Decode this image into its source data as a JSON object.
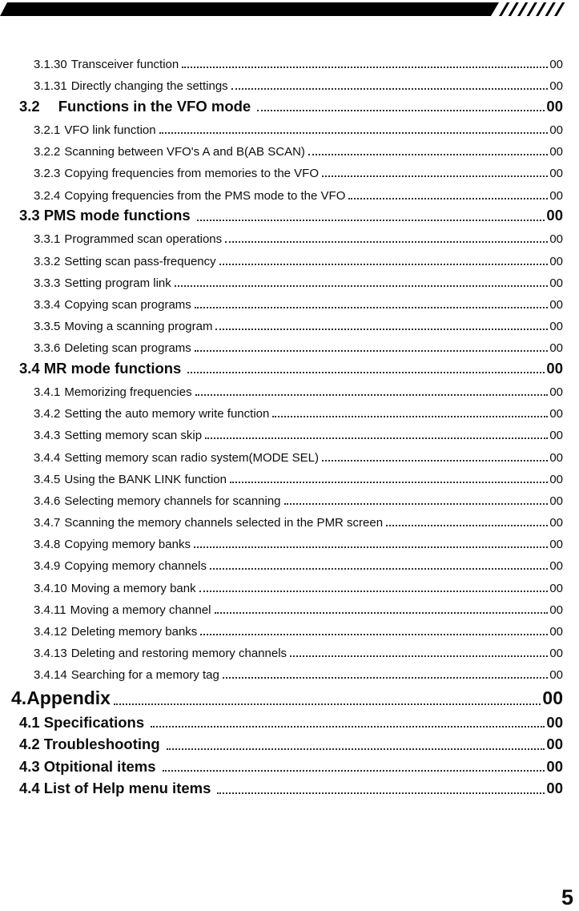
{
  "page": {
    "number": "5",
    "background_color": "#ffffff",
    "text_color": "#0d0d0d",
    "band_color": "#000000"
  },
  "header": {
    "style": "black-slanted-band",
    "stripe_count": 7
  },
  "toc": {
    "entries": [
      {
        "level": "sub",
        "num": "3.1.30",
        "title": "Transceiver function",
        "page": "00"
      },
      {
        "level": "sub",
        "num": "3.1.31",
        "title": "Directly changing the settings",
        "page": "00"
      },
      {
        "level": "section",
        "num": "3.2",
        "title": "Functions in the VFO mode",
        "page": "00",
        "wide_gap": true
      },
      {
        "level": "sub",
        "num": "3.2.1",
        "title": "VFO link function",
        "page": "00"
      },
      {
        "level": "sub",
        "num": "3.2.2",
        "title": "Scanning between VFO's A and B(AB SCAN)",
        "page": "00"
      },
      {
        "level": "sub",
        "num": "3.2.3",
        "title": "Copying frequencies from memories to the VFO",
        "page": "00"
      },
      {
        "level": "sub",
        "num": "3.2.4",
        "title": "Copying frequencies from the PMS mode to the VFO",
        "page": "00"
      },
      {
        "level": "section",
        "num": "3.3",
        "title": "PMS mode functions",
        "page": "00"
      },
      {
        "level": "sub",
        "num": "3.3.1",
        "title": "Programmed scan operations",
        "page": "00"
      },
      {
        "level": "sub",
        "num": "3.3.2",
        "title": "Setting scan pass-frequency",
        "page": "00"
      },
      {
        "level": "sub",
        "num": "3.3.3",
        "title": "Setting program link",
        "page": "00"
      },
      {
        "level": "sub",
        "num": "3.3.4",
        "title": "Copying scan programs",
        "page": "00"
      },
      {
        "level": "sub",
        "num": "3.3.5",
        "title": "Moving a scanning program",
        "page": "00"
      },
      {
        "level": "sub",
        "num": "3.3.6",
        "title": "Deleting scan programs",
        "page": "00"
      },
      {
        "level": "section",
        "num": "3.4",
        "title": "MR mode functions",
        "page": "00"
      },
      {
        "level": "sub",
        "num": "3.4.1",
        "title": "Memorizing frequencies",
        "page": "00"
      },
      {
        "level": "sub",
        "num": "3.4.2",
        "title": "Setting the auto memory write function",
        "page": "00"
      },
      {
        "level": "sub",
        "num": "3.4.3",
        "title": "Setting memory scan skip",
        "page": "00"
      },
      {
        "level": "sub",
        "num": "3.4.4",
        "title": "Setting memory scan radio system(MODE SEL)",
        "page": "00"
      },
      {
        "level": "sub",
        "num": "3.4.5",
        "title": "Using the BANK LINK function",
        "page": "00"
      },
      {
        "level": "sub",
        "num": "3.4.6",
        "title": "Selecting memory channels for scanning",
        "page": "00"
      },
      {
        "level": "sub",
        "num": "3.4.7",
        "title": "Scanning the memory channels selected in the PMR screen",
        "page": "00"
      },
      {
        "level": "sub",
        "num": "3.4.8",
        "title": "Copying memory banks",
        "page": "00"
      },
      {
        "level": "sub",
        "num": "3.4.9",
        "title": "Copying memory channels",
        "page": "00"
      },
      {
        "level": "sub",
        "num": "3.4.10",
        "title": "Moving a memory bank",
        "page": "00"
      },
      {
        "level": "sub",
        "num": "3.4.11",
        "title": "Moving a memory channel",
        "page": "00"
      },
      {
        "level": "sub",
        "num": "3.4.12",
        "title": "Deleting memory banks",
        "page": "00"
      },
      {
        "level": "sub",
        "num": "3.4.13",
        "title": "Deleting and restoring memory channels",
        "page": "00"
      },
      {
        "level": "sub",
        "num": "3.4.14",
        "title": "Searching for a memory tag",
        "page": "00"
      },
      {
        "level": "chapter",
        "num": "4.",
        "title": "Appendix",
        "page": "00"
      },
      {
        "level": "section",
        "num": "4.1",
        "title": "Specifications",
        "page": "00"
      },
      {
        "level": "section",
        "num": "4.2",
        "title": "Troubleshooting",
        "page": "00"
      },
      {
        "level": "section",
        "num": "4.3",
        "title": "Otpitional items",
        "page": "00"
      },
      {
        "level": "section",
        "num": "4.4",
        "title": "List of Help menu items",
        "page": "00"
      }
    ]
  }
}
